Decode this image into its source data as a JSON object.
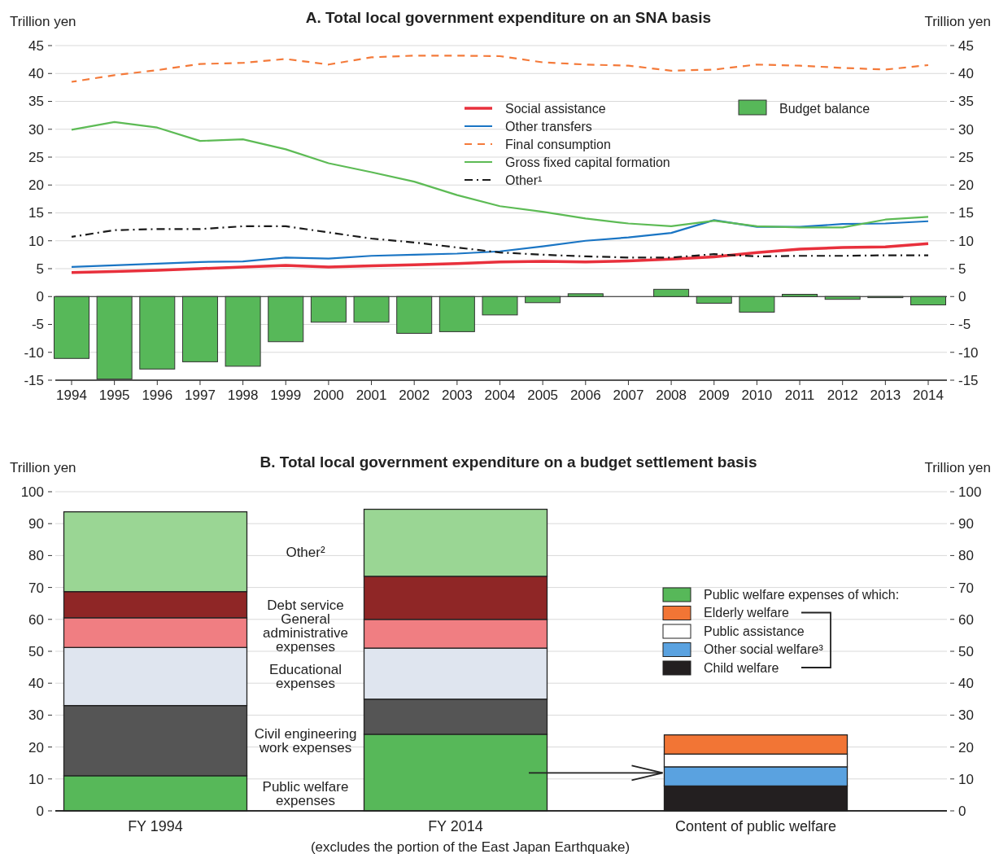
{
  "chart_data": [
    {
      "type": "line",
      "title": "A. Total local government expenditure on an SNA basis",
      "ylabel": "Trillion yen",
      "y2label": "Trillion yen",
      "categories": [
        "1994",
        "1995",
        "1996",
        "1997",
        "1998",
        "1999",
        "2000",
        "2001",
        "2002",
        "2003",
        "2004",
        "2005",
        "2006",
        "2007",
        "2008",
        "2009",
        "2010",
        "2011",
        "2012",
        "2013",
        "2014"
      ],
      "series": [
        {
          "name": "Social assistance",
          "color": "#e8303c",
          "line_style": "solid",
          "values": [
            4.3,
            4.5,
            4.7,
            5.0,
            5.3,
            5.6,
            5.3,
            5.5,
            5.7,
            5.9,
            6.2,
            6.3,
            6.2,
            6.4,
            6.7,
            7.1,
            7.9,
            8.5,
            8.8,
            8.9,
            9.5
          ]
        },
        {
          "name": "Other transfers",
          "color": "#1a75c4",
          "line_style": "solid",
          "values": [
            5.3,
            5.6,
            5.9,
            6.2,
            6.3,
            7.0,
            6.8,
            7.3,
            7.5,
            7.7,
            8.1,
            9.0,
            10.0,
            10.6,
            11.4,
            13.7,
            12.5,
            12.5,
            13.0,
            13.1,
            13.5
          ]
        },
        {
          "name": "Final consumption",
          "color": "#f47a3a",
          "line_style": "dashed",
          "values": [
            38.5,
            39.7,
            40.6,
            41.7,
            41.9,
            42.6,
            41.6,
            42.9,
            43.2,
            43.2,
            43.1,
            42.0,
            41.6,
            41.4,
            40.5,
            40.7,
            41.6,
            41.4,
            41.0,
            40.7,
            41.5
          ]
        },
        {
          "name": "Gross fixed capital formation",
          "color": "#5dbb55",
          "line_style": "solid",
          "values": [
            29.9,
            31.3,
            30.3,
            27.9,
            28.2,
            26.4,
            23.9,
            22.3,
            20.6,
            18.2,
            16.2,
            15.2,
            14.0,
            13.1,
            12.6,
            13.6,
            12.6,
            12.4,
            12.4,
            13.8,
            14.3
          ]
        },
        {
          "name": "Other¹",
          "color": "#1a1a1a",
          "line_style": "dotted",
          "values": [
            10.7,
            11.9,
            12.1,
            12.1,
            12.6,
            12.6,
            11.5,
            10.4,
            9.7,
            8.8,
            7.9,
            7.5,
            7.2,
            7.0,
            7.0,
            7.6,
            7.2,
            7.3,
            7.3,
            7.4,
            7.4
          ]
        },
        {
          "name": "Budget balance",
          "type": "bar",
          "color": "#57b859",
          "values": [
            -11.1,
            -14.8,
            -13.0,
            -11.7,
            -12.5,
            -8.1,
            -4.6,
            -4.6,
            -6.6,
            -6.3,
            -3.3,
            -1.1,
            0.5,
            null,
            1.3,
            -1.2,
            -2.8,
            0.4,
            -0.5,
            -0.2,
            -1.5
          ]
        }
      ],
      "ylim": [
        -15,
        45
      ],
      "yticks": [
        -15,
        -10,
        -5,
        0,
        5,
        10,
        15,
        20,
        25,
        30,
        35,
        40,
        45
      ],
      "y2lim": [
        -15,
        45
      ],
      "y2ticks": [
        -15,
        -10,
        -5,
        0,
        5,
        10,
        15,
        20,
        25,
        30,
        35,
        40,
        45
      ],
      "grid": "y",
      "legend": "top"
    },
    {
      "type": "bar",
      "stacked": true,
      "title": "B. Total local government expenditure on a budget settlement basis",
      "ylabel": "Trillion yen",
      "y2label": "Trillion yen",
      "categories": [
        "FY 1994",
        "FY 2014",
        "Content of public welfare"
      ],
      "series": [
        {
          "name": "Public welfare expenses",
          "color": "#57b859",
          "values": [
            11,
            24,
            null
          ]
        },
        {
          "name": "Civil engineering work expenses",
          "color": "#555555",
          "values": [
            22,
            11,
            null
          ]
        },
        {
          "name": "Educational expenses",
          "color": "#dfe5ef",
          "values": [
            18.2,
            16,
            null
          ]
        },
        {
          "name": "General administrative expenses",
          "color": "#f07e82",
          "values": [
            9.3,
            9,
            null
          ]
        },
        {
          "name": "Debt service",
          "color": "#8f2626",
          "values": [
            8.2,
            13.5,
            null
          ]
        },
        {
          "name": "Other²",
          "color": "#9ad694",
          "values": [
            25,
            21,
            null
          ]
        },
        {
          "name": "Child welfare",
          "color": "#231f20",
          "values": [
            null,
            null,
            7.8
          ]
        },
        {
          "name": "Other social welfare³",
          "color": "#5aa2e0",
          "values": [
            null,
            null,
            6
          ]
        },
        {
          "name": "Public assistance",
          "color": "#ffffff",
          "values": [
            null,
            null,
            4
          ]
        },
        {
          "name": "Elderly welfare",
          "color": "#f27535",
          "values": [
            null,
            null,
            6
          ]
        }
      ],
      "ylim": [
        0,
        100
      ],
      "yticks": [
        0,
        10,
        20,
        30,
        40,
        50,
        60,
        70,
        80,
        90,
        100
      ],
      "y2lim": [
        0,
        100
      ],
      "y2ticks": [
        0,
        10,
        20,
        30,
        40,
        50,
        60,
        70,
        80,
        90,
        100
      ],
      "grid": "y",
      "legend": "right",
      "annotations": [
        "of which:",
        "(excludes the portion of the East Japan Earthquake)"
      ]
    }
  ]
}
